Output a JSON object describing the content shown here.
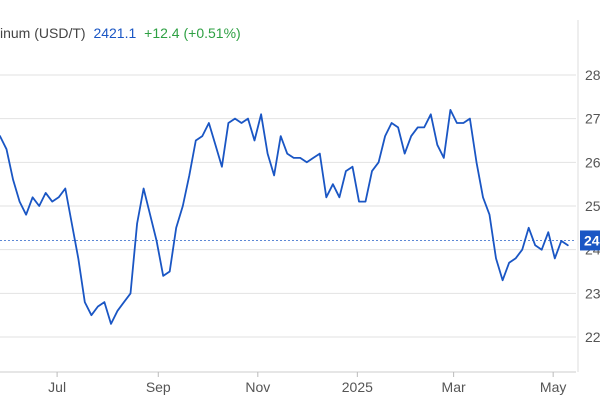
{
  "colors": {
    "line": "#1a56c4",
    "grid": "#e2e2e2",
    "axis_text": "#555555",
    "legend_name": "#444444",
    "legend_change": "#2ea043",
    "marker_bg": "#1a56c4",
    "marker_text": "#ffffff"
  },
  "legend": {
    "name": "inum (USD/T)",
    "last": "2421.1",
    "change": "+12.4 (+0.51%)"
  },
  "chart_data": {
    "type": "line",
    "title": "",
    "xlabel": "",
    "ylabel": "",
    "grid": true,
    "y_tick_labels": [
      "28",
      "27",
      "26",
      "25",
      "24",
      "23",
      "22"
    ],
    "y_tick_values": [
      2800,
      2700,
      2600,
      2500,
      2400,
      2300,
      2200
    ],
    "ylim": [
      2120,
      2880
    ],
    "x_tick_labels": [
      "Jul",
      "Sep",
      "Nov",
      "2025",
      "Mar",
      "May"
    ],
    "x_tick_dates": [
      "2024-07-01",
      "2024-09-01",
      "2024-11-01",
      "2025-01-01",
      "2025-03-01",
      "2025-05-01"
    ],
    "xlim": [
      "2024-05-27",
      "2025-05-15"
    ],
    "current_value": 2421.1,
    "current_label": "24",
    "series": [
      {
        "x": [
          "2024-05-27",
          "2024-05-31",
          "2024-06-04",
          "2024-06-08",
          "2024-06-12",
          "2024-06-16",
          "2024-06-20",
          "2024-06-24",
          "2024-06-28",
          "2024-07-02",
          "2024-07-06",
          "2024-07-10",
          "2024-07-14",
          "2024-07-18",
          "2024-07-22",
          "2024-07-26",
          "2024-07-30",
          "2024-08-03",
          "2024-08-07",
          "2024-08-11",
          "2024-08-15",
          "2024-08-19",
          "2024-08-23",
          "2024-08-27",
          "2024-08-31",
          "2024-09-04",
          "2024-09-08",
          "2024-09-12",
          "2024-09-16",
          "2024-09-20",
          "2024-09-24",
          "2024-09-28",
          "2024-10-02",
          "2024-10-06",
          "2024-10-10",
          "2024-10-14",
          "2024-10-18",
          "2024-10-22",
          "2024-10-26",
          "2024-10-30",
          "2024-11-03",
          "2024-11-07",
          "2024-11-11",
          "2024-11-15",
          "2024-11-19",
          "2024-11-23",
          "2024-11-27",
          "2024-12-01",
          "2024-12-05",
          "2024-12-09",
          "2024-12-13",
          "2024-12-17",
          "2024-12-21",
          "2024-12-25",
          "2024-12-29",
          "2025-01-02",
          "2025-01-06",
          "2025-01-10",
          "2025-01-14",
          "2025-01-18",
          "2025-01-22",
          "2025-01-26",
          "2025-01-30",
          "2025-02-03",
          "2025-02-07",
          "2025-02-11",
          "2025-02-15",
          "2025-02-19",
          "2025-02-23",
          "2025-02-27",
          "2025-03-03",
          "2025-03-07",
          "2025-03-11",
          "2025-03-15",
          "2025-03-19",
          "2025-03-23",
          "2025-03-27",
          "2025-03-31",
          "2025-04-04",
          "2025-04-08",
          "2025-04-12",
          "2025-04-16",
          "2025-04-20",
          "2025-04-24",
          "2025-04-28",
          "2025-05-02",
          "2025-05-06",
          "2025-05-10"
        ],
        "y": [
          2660,
          2630,
          2560,
          2510,
          2480,
          2520,
          2500,
          2530,
          2510,
          2520,
          2540,
          2460,
          2380,
          2280,
          2250,
          2270,
          2280,
          2230,
          2260,
          2280,
          2300,
          2460,
          2540,
          2480,
          2420,
          2340,
          2350,
          2450,
          2500,
          2570,
          2650,
          2660,
          2690,
          2640,
          2590,
          2690,
          2700,
          2690,
          2700,
          2650,
          2710,
          2620,
          2570,
          2660,
          2620,
          2610,
          2610,
          2600,
          2610,
          2620,
          2520,
          2550,
          2520,
          2580,
          2590,
          2510,
          2510,
          2580,
          2600,
          2660,
          2690,
          2680,
          2620,
          2660,
          2680,
          2680,
          2710,
          2640,
          2610,
          2720,
          2690,
          2690,
          2700,
          2600,
          2520,
          2480,
          2380,
          2330,
          2370,
          2380,
          2400,
          2450,
          2410,
          2400,
          2440,
          2380,
          2420,
          2410
        ]
      }
    ]
  }
}
